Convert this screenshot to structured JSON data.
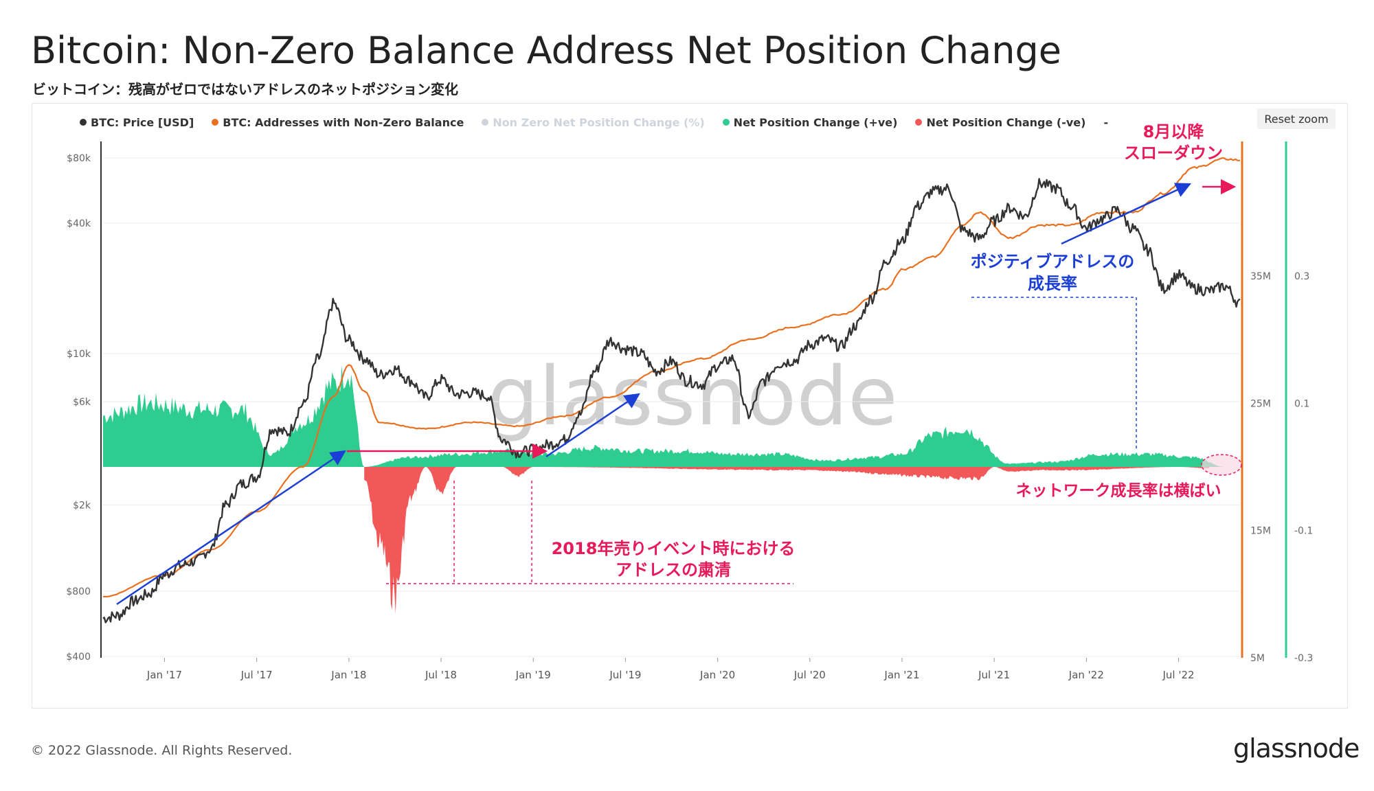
{
  "title": "Bitcoin: Non-Zero Balance Address Net Position Change",
  "subtitle": "ビットコイン：残高がゼロではないアドレスのネットポジション変化",
  "reset_zoom": "Reset zoom",
  "footer": "© 2022 Glassnode. All Rights Reserved.",
  "brand": "glassnode",
  "watermark": "glassnode",
  "legend": [
    {
      "label": "BTC: Price [USD]",
      "color": "#333333",
      "enabled": true
    },
    {
      "label": "BTC: Addresses with Non-Zero Balance",
      "color": "#e8701f",
      "enabled": true
    },
    {
      "label": "Non Zero Net Position Change (%)",
      "color": "#1b4fd6",
      "enabled": false
    },
    {
      "label": "Net Position Change (+ve)",
      "color": "#2ecc8f",
      "enabled": true
    },
    {
      "label": "Net Position Change (-ve)",
      "color": "#f25858",
      "enabled": true
    },
    {
      "label": "-",
      "color": "",
      "enabled": true
    }
  ],
  "annotations": {
    "slowdown_line1": "8月以降",
    "slowdown_line2": "スローダウン",
    "positive_line1": "ポジティブアドレスの",
    "positive_line2": "成長率",
    "purge_line1": "2018年売りイベント時における",
    "purge_line2": "アドレスの粛清",
    "flat": "ネットワーク成長率は横ばい"
  },
  "chart_data": {
    "type": "line",
    "x_ticks": [
      "Jan '17",
      "Jul '17",
      "Jan '18",
      "Jul '18",
      "Jan '19",
      "Jul '19",
      "Jan '20",
      "Jul '20",
      "Jan '21",
      "Jul '21",
      "Jan '22",
      "Jul '22"
    ],
    "x_range": [
      "2016-09",
      "2022-11"
    ],
    "y_left": {
      "scale": "log",
      "ticks": [
        "$400",
        "$800",
        "$2k",
        "$6k",
        "$10k",
        "$40k",
        "$80k"
      ],
      "tick_values": [
        400,
        800,
        2000,
        6000,
        10000,
        40000,
        80000
      ]
    },
    "y_right1": {
      "ticks": [
        "5M",
        "15M",
        "25M",
        "35M"
      ],
      "tick_values": [
        5000000,
        15000000,
        25000000,
        35000000
      ]
    },
    "y_right2": {
      "ticks": [
        "-0.3",
        "-0.1",
        "0.1",
        "0.3"
      ],
      "tick_values": [
        -0.3,
        -0.1,
        0.1,
        0.3
      ]
    },
    "series": [
      {
        "name": "BTC: Price [USD]",
        "axis": "left",
        "color": "#333333",
        "x": [
          "2016-09",
          "2016-10",
          "2016-11",
          "2016-12",
          "2017-01",
          "2017-02",
          "2017-03",
          "2017-04",
          "2017-05",
          "2017-06",
          "2017-07",
          "2017-08",
          "2017-09",
          "2017-10",
          "2017-11",
          "2017-12",
          "2018-01",
          "2018-02",
          "2018-03",
          "2018-04",
          "2018-05",
          "2018-06",
          "2018-07",
          "2018-08",
          "2018-09",
          "2018-10",
          "2018-11",
          "2018-12",
          "2019-01",
          "2019-02",
          "2019-03",
          "2019-04",
          "2019-05",
          "2019-06",
          "2019-07",
          "2019-08",
          "2019-09",
          "2019-10",
          "2019-11",
          "2019-12",
          "2020-01",
          "2020-02",
          "2020-03",
          "2020-04",
          "2020-05",
          "2020-06",
          "2020-07",
          "2020-08",
          "2020-09",
          "2020-10",
          "2020-11",
          "2020-12",
          "2021-01",
          "2021-02",
          "2021-03",
          "2021-04",
          "2021-05",
          "2021-06",
          "2021-07",
          "2021-08",
          "2021-09",
          "2021-10",
          "2021-11",
          "2021-12",
          "2022-01",
          "2022-02",
          "2022-03",
          "2022-04",
          "2022-05",
          "2022-06",
          "2022-07",
          "2022-08",
          "2022-09",
          "2022-10",
          "2022-11"
        ],
        "values": [
          600,
          620,
          720,
          780,
          950,
          1050,
          1100,
          1250,
          2000,
          2500,
          2700,
          4500,
          4300,
          5800,
          9500,
          17000,
          11500,
          9500,
          8000,
          8500,
          7500,
          6300,
          7600,
          6500,
          6600,
          6400,
          4000,
          3500,
          3600,
          3800,
          4000,
          5200,
          8300,
          11500,
          10500,
          10000,
          8300,
          9200,
          7500,
          7200,
          8800,
          9500,
          5200,
          7500,
          9000,
          9300,
          11000,
          11700,
          10800,
          13500,
          18000,
          27000,
          33000,
          48000,
          56000,
          58000,
          37000,
          34000,
          41000,
          47000,
          43000,
          61000,
          58000,
          48000,
          38000,
          42000,
          46000,
          38000,
          30000,
          20000,
          23000,
          20000,
          19500,
          20500,
          17000
        ]
      },
      {
        "name": "BTC: Addresses with Non-Zero Balance",
        "axis": "right1",
        "color": "#e8701f",
        "x": [
          "2016-09",
          "2017-01",
          "2017-04",
          "2017-07",
          "2017-10",
          "2017-12",
          "2018-01",
          "2018-02",
          "2018-03",
          "2018-06",
          "2018-09",
          "2018-12",
          "2019-03",
          "2019-06",
          "2019-09",
          "2019-12",
          "2020-03",
          "2020-06",
          "2020-09",
          "2020-12",
          "2021-01",
          "2021-03",
          "2021-05",
          "2021-06",
          "2021-08",
          "2021-10",
          "2021-12",
          "2022-02",
          "2022-04",
          "2022-06",
          "2022-08",
          "2022-10",
          "2022-11"
        ],
        "values": [
          9800000,
          11500000,
          13500000,
          16500000,
          20000000,
          25500000,
          28000000,
          26000000,
          23500000,
          23000000,
          23500000,
          23200000,
          24000000,
          25500000,
          27500000,
          28500000,
          30000000,
          31000000,
          32000000,
          34000000,
          35500000,
          36500000,
          39000000,
          40000000,
          38000000,
          39000000,
          39000000,
          40000000,
          40000000,
          41500000,
          43500000,
          44200000,
          44100000
        ]
      },
      {
        "name": "Net Position Change (+ve)",
        "axis": "right2",
        "color": "#2ecc8f",
        "type": "area",
        "x": [
          "2016-09",
          "2016-12",
          "2017-03",
          "2017-06",
          "2017-08",
          "2017-10",
          "2017-12",
          "2018-01",
          "2018-02",
          "2018-05",
          "2018-08",
          "2018-11",
          "2019-02",
          "2019-05",
          "2019-08",
          "2019-11",
          "2020-02",
          "2020-05",
          "2020-08",
          "2020-11",
          "2021-01",
          "2021-03",
          "2021-05",
          "2021-08",
          "2021-11",
          "2022-02",
          "2022-05",
          "2022-08",
          "2022-10"
        ],
        "values": [
          0.08,
          0.1,
          0.09,
          0.09,
          0.02,
          0.07,
          0.13,
          0.15,
          0.0,
          0.015,
          0.02,
          0.025,
          0.02,
          0.03,
          0.025,
          0.025,
          0.02,
          0.02,
          0.01,
          0.015,
          0.02,
          0.05,
          0.06,
          0.005,
          0.008,
          0.02,
          0.02,
          0.015,
          0.0
        ]
      },
      {
        "name": "Net Position Change (-ve)",
        "axis": "right2",
        "color": "#f25858",
        "type": "area",
        "x": [
          "2018-02",
          "2018-03",
          "2018-04",
          "2018-05",
          "2018-06",
          "2018-07",
          "2018-08",
          "2018-11",
          "2018-12",
          "2019-01",
          "2020-06",
          "2021-06",
          "2021-07",
          "2021-08",
          "2021-10",
          "2021-12",
          "2022-07",
          "2022-09"
        ],
        "values": [
          -0.02,
          -0.12,
          -0.2,
          -0.05,
          0.0,
          -0.04,
          0.0,
          0.0,
          -0.015,
          0.0,
          -0.005,
          -0.018,
          0.0,
          -0.008,
          -0.005,
          -0.005,
          0.0,
          -0.002
        ]
      }
    ]
  }
}
